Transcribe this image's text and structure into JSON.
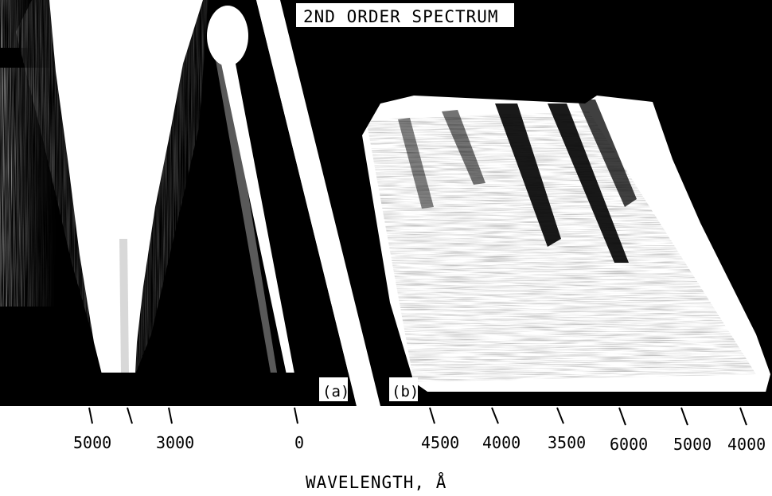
{
  "figure": {
    "header": "2ND ORDER SPECTRUM",
    "panel_a_label": "(a)",
    "panel_b_label": "(b)",
    "panel_a_ticks": [
      "5000",
      "3000",
      "0"
    ],
    "panel_b_ticks": [
      "4500",
      "4000",
      "3500",
      "6000",
      "5000",
      "4000"
    ],
    "axis_label": "WAVELENGTH, Å"
  },
  "colors": {
    "background": "#000000",
    "paper": "#ffffff",
    "exposure": "#ffffff"
  }
}
